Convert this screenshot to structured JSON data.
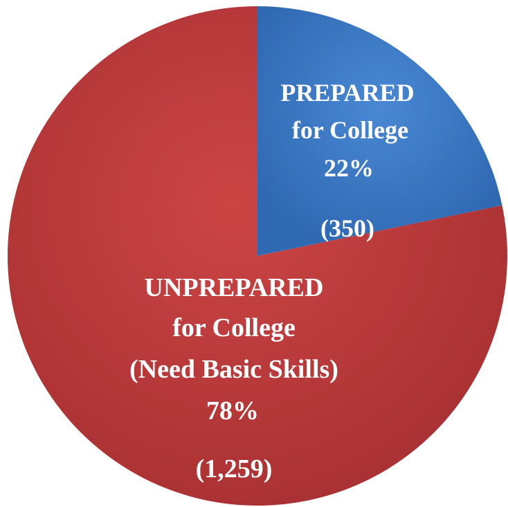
{
  "chart_data": {
    "type": "pie",
    "title": "",
    "slices": [
      {
        "name": "PREPARED for College",
        "label_lines": [
          "PREPARED",
          "for College"
        ],
        "percent_label": "22%",
        "count_label": "(350)",
        "value": 350,
        "percent": 22,
        "color": "#3a78c4"
      },
      {
        "name": "UNPREPARED for College (Need Basic Skills)",
        "label_lines": [
          "UNPREPARED",
          "for College",
          "(Need Basic Skills)"
        ],
        "percent_label": "78%",
        "count_label": "(1,259)",
        "value": 1259,
        "percent": 78,
        "color": "#c0393b"
      }
    ],
    "start_angle": "12 o'clock",
    "direction": "clockwise",
    "legend": "none"
  }
}
